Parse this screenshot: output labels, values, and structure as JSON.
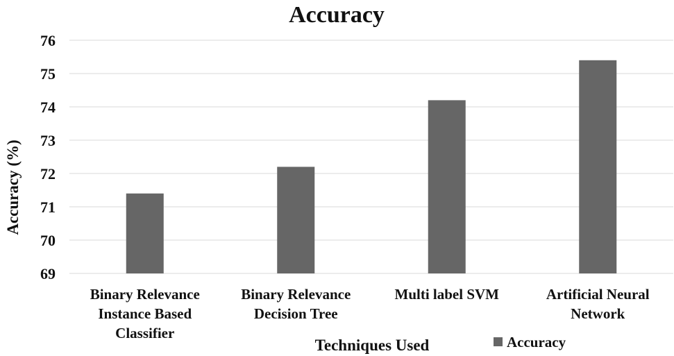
{
  "chart_data": {
    "type": "bar",
    "title": "Accuracy",
    "xlabel": "Techniques Used",
    "ylabel": "Accuracy (%)",
    "categories": [
      [
        "Binary Relevance",
        "Instance Based",
        "Classifier"
      ],
      [
        "Binary Relevance",
        "Decision Tree"
      ],
      [
        "Multi label SVM"
      ],
      [
        "Artificial Neural",
        "Network"
      ]
    ],
    "series": [
      {
        "name": "Accuracy",
        "values": [
          71.4,
          72.2,
          74.2,
          75.4
        ],
        "color": "#666666"
      }
    ],
    "ylim": [
      69,
      76
    ],
    "yticks": [
      "69",
      "70",
      "71",
      "72",
      "73",
      "74",
      "75",
      "76"
    ],
    "grid": true,
    "legend_position": "bottom-right"
  }
}
